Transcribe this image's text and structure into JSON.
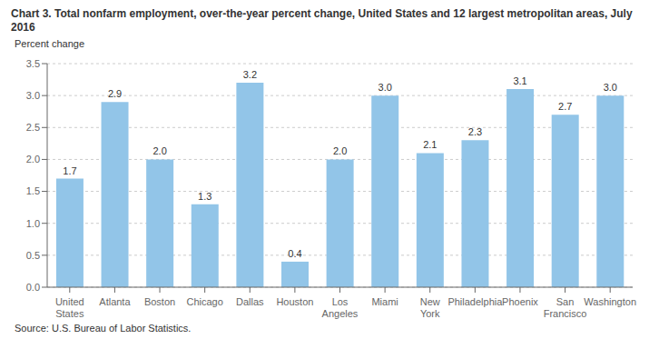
{
  "chart_data": {
    "type": "bar",
    "title": "Chart 3. Total nonfarm employment, over-the-year percent change, United States and 12 largest metropolitan areas, July 2016",
    "ylabel": "Percent change",
    "annotations": [
      "Source: U.S. Bureau of Labor Statistics."
    ],
    "categories": [
      "United\nStates",
      "Atlanta",
      "Boston",
      "Chicago",
      "Dallas",
      "Houston",
      "Los\nAngeles",
      "Miami",
      "New\nYork",
      "Philadelphia",
      "Phoenix",
      "San\nFrancisco",
      "Washington"
    ],
    "values": [
      1.7,
      2.9,
      2.0,
      1.3,
      3.2,
      0.4,
      2.0,
      3.0,
      2.1,
      2.3,
      3.1,
      2.7,
      3.0
    ],
    "value_labels": [
      "1.7",
      "2.9",
      "2.0",
      "1.3",
      "3.2",
      "0.4",
      "2.0",
      "3.0",
      "2.1",
      "2.3",
      "3.1",
      "2.7",
      "3.0"
    ],
    "data_labels": true,
    "color": "#92C5E8",
    "ylim": [
      0,
      3.5
    ],
    "yticks": [
      {
        "value": 0,
        "label": "0.0"
      },
      0.5,
      {
        "value": 1,
        "label": "1.0"
      },
      1.5,
      {
        "value": 2,
        "label": "2.0"
      },
      2.5,
      {
        "value": 3,
        "label": "3.0"
      },
      3.5
    ],
    "grid": true
  }
}
